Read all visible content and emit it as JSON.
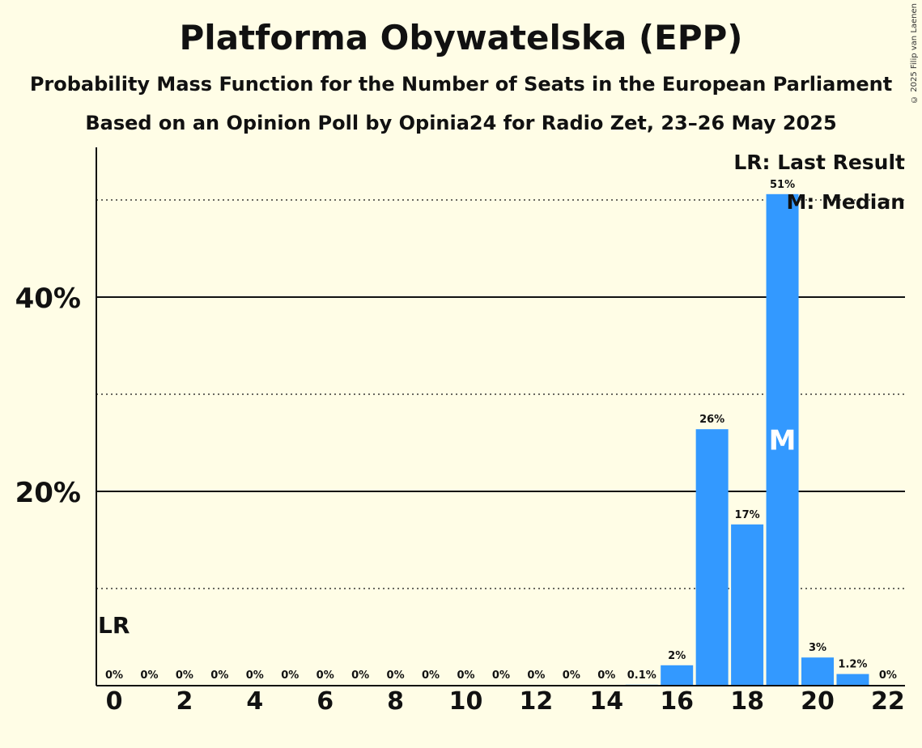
{
  "title": "Platforma Obywatelska (EPP)",
  "subtitle1": "Probability Mass Function for the Number of Seats in the European Parliament",
  "subtitle2": "Based on an Opinion Poll by Opinia24 for Radio Zet, 23–26 May 2025",
  "copyright": "© 2025 Filip van Laenen",
  "legend": {
    "lr": "LR: Last Result",
    "m": "M: Median"
  },
  "colors": {
    "bar": "#3399FF",
    "background": "#FFFDE6",
    "text": "#111111"
  },
  "chart_data": {
    "type": "bar",
    "categories": [
      0,
      1,
      2,
      3,
      4,
      5,
      6,
      7,
      8,
      9,
      10,
      11,
      12,
      13,
      14,
      15,
      16,
      17,
      18,
      19,
      20,
      21,
      22
    ],
    "values": [
      0,
      0,
      0,
      0,
      0,
      0,
      0,
      0,
      0,
      0,
      0,
      0,
      0,
      0,
      0,
      0.1,
      2.1,
      26.4,
      16.6,
      50.6,
      2.9,
      1.2,
      0
    ],
    "value_labels": [
      "0%",
      "0%",
      "0%",
      "0%",
      "0%",
      "0%",
      "0%",
      "0%",
      "0%",
      "0%",
      "0%",
      "0%",
      "0%",
      "0%",
      "0%",
      "0.1%",
      "2%",
      "26%",
      "17%",
      "51%",
      "3%",
      "1.2%",
      "0%"
    ],
    "x_tick_labels": [
      "0",
      "2",
      "4",
      "6",
      "8",
      "10",
      "12",
      "14",
      "16",
      "18",
      "20",
      "22"
    ],
    "x_ticks": [
      0,
      2,
      4,
      6,
      8,
      10,
      12,
      14,
      16,
      18,
      20,
      22
    ],
    "y_tick_labels": [
      "20%",
      "40%"
    ],
    "y_ticks": [
      20,
      40
    ],
    "y_minor_gridlines": [
      10,
      30,
      50
    ],
    "ylim": [
      0,
      55
    ],
    "last_result_seat": 0,
    "last_result_label": "LR",
    "median_seat": 19,
    "median_label": "M"
  }
}
